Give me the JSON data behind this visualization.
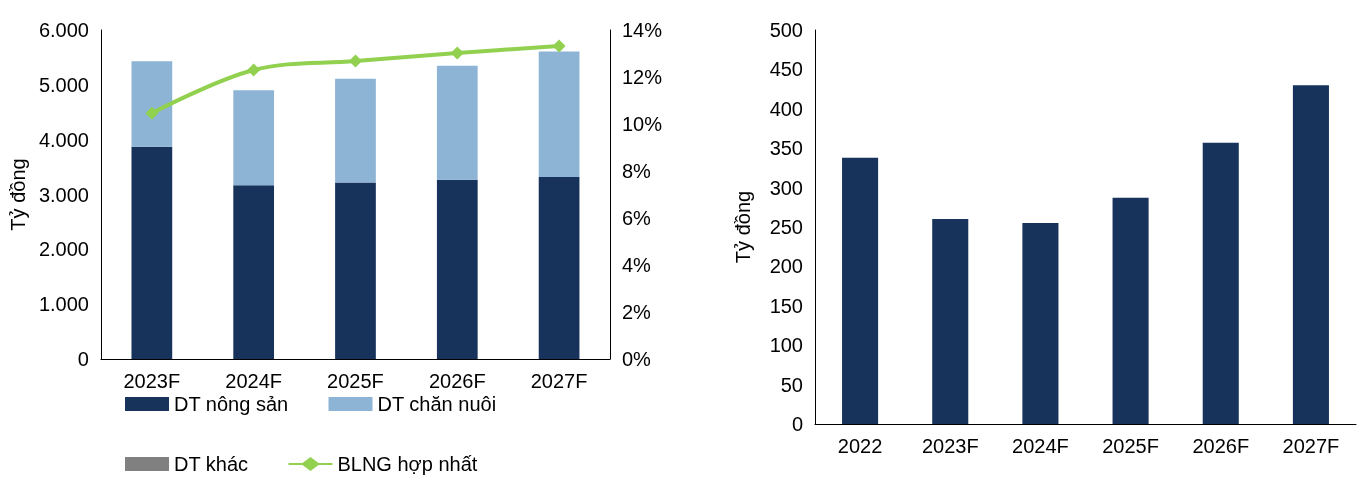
{
  "chart_data": [
    {
      "type": "bar",
      "stacked": true,
      "ylabel": "Tỷ đồng",
      "categories": [
        "2023F",
        "2024F",
        "2025F",
        "2026F",
        "2027F"
      ],
      "series": [
        {
          "name": "DT nông sản",
          "color": "#17325b",
          "values": [
            3870,
            3170,
            3220,
            3270,
            3320
          ]
        },
        {
          "name": "DT chăn nuôi",
          "color": "#8db3d5",
          "values": [
            1560,
            1730,
            1890,
            2080,
            2290
          ]
        },
        {
          "name": "DT khác",
          "color": "#808080",
          "values": [
            0,
            0,
            0,
            0,
            0
          ]
        },
        {
          "name": "BLNG hợp nhất",
          "type": "line",
          "axis": "y2",
          "color": "#92d050",
          "marker": "diamond",
          "values": [
            10.46,
            12.3,
            12.68,
            13.02,
            13.32
          ]
        }
      ],
      "ylim": [
        0,
        6000
      ],
      "yticks": [
        0,
        {
          "value": 1000,
          "label": "1.000"
        },
        {
          "value": 2000,
          "label": "2.000"
        },
        {
          "value": 3000,
          "label": "3.000"
        },
        {
          "value": 4000,
          "label": "4.000"
        },
        {
          "value": 5000,
          "label": "5.000"
        },
        {
          "value": 6000,
          "label": "6.000"
        }
      ],
      "y2lim": [
        0,
        14
      ],
      "y2ticks": [
        {
          "value": 0,
          "label": "0%"
        },
        {
          "value": 2,
          "label": "2%"
        },
        {
          "value": 4,
          "label": "4%"
        },
        {
          "value": 6,
          "label": "6%"
        },
        {
          "value": 8,
          "label": "8%"
        },
        {
          "value": 10,
          "label": "10%"
        },
        {
          "value": 12,
          "label": "12%"
        },
        {
          "value": 14,
          "label": "14%"
        }
      ],
      "grid": false,
      "legend": "bottom"
    },
    {
      "type": "bar",
      "ylabel": "Tỷ đồng",
      "categories": [
        "2022",
        "2023F",
        "2024F",
        "2025F",
        "2026F",
        "2027F"
      ],
      "series": [
        {
          "color": "#17325b",
          "values": [
            338,
            260,
            255,
            287,
            357,
            430
          ]
        }
      ],
      "ylim": [
        0,
        500
      ],
      "yticks": [
        0,
        50,
        100,
        150,
        200,
        250,
        300,
        350,
        400,
        450,
        500
      ],
      "grid": false,
      "legend": false
    }
  ]
}
